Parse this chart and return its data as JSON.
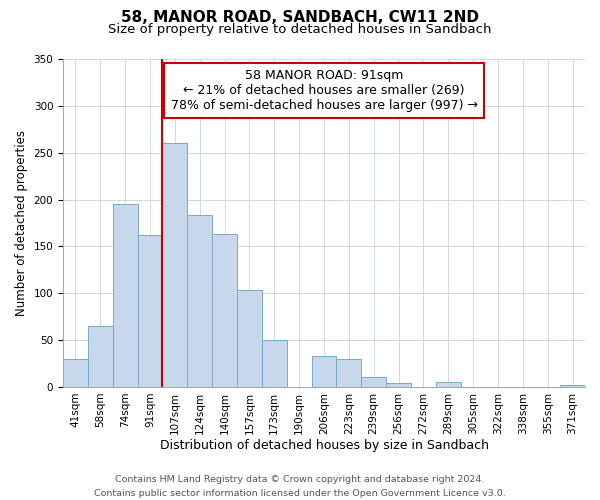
{
  "title": "58, MANOR ROAD, SANDBACH, CW11 2ND",
  "subtitle": "Size of property relative to detached houses in Sandbach",
  "xlabel": "Distribution of detached houses by size in Sandbach",
  "ylabel": "Number of detached properties",
  "bar_labels": [
    "41sqm",
    "58sqm",
    "74sqm",
    "91sqm",
    "107sqm",
    "124sqm",
    "140sqm",
    "157sqm",
    "173sqm",
    "190sqm",
    "206sqm",
    "223sqm",
    "239sqm",
    "256sqm",
    "272sqm",
    "289sqm",
    "305sqm",
    "322sqm",
    "338sqm",
    "355sqm",
    "371sqm"
  ],
  "bar_values": [
    30,
    65,
    195,
    162,
    260,
    184,
    163,
    103,
    50,
    0,
    33,
    30,
    11,
    4,
    0,
    5,
    0,
    0,
    0,
    0,
    2
  ],
  "bar_color": "#c8d8ec",
  "bar_edge_color": "#7aaac8",
  "highlight_line_color": "#cc0000",
  "annotation_text": "58 MANOR ROAD: 91sqm\n← 21% of detached houses are smaller (269)\n78% of semi-detached houses are larger (997) →",
  "annotation_box_color": "white",
  "annotation_box_edge_color": "#cc0000",
  "ylim": [
    0,
    350
  ],
  "yticks": [
    0,
    50,
    100,
    150,
    200,
    250,
    300,
    350
  ],
  "footer": "Contains HM Land Registry data © Crown copyright and database right 2024.\nContains public sector information licensed under the Open Government Licence v3.0.",
  "title_fontsize": 11,
  "subtitle_fontsize": 9.5,
  "xlabel_fontsize": 9,
  "ylabel_fontsize": 8.5,
  "tick_fontsize": 7.5,
  "annotation_fontsize": 9,
  "footer_fontsize": 6.8
}
